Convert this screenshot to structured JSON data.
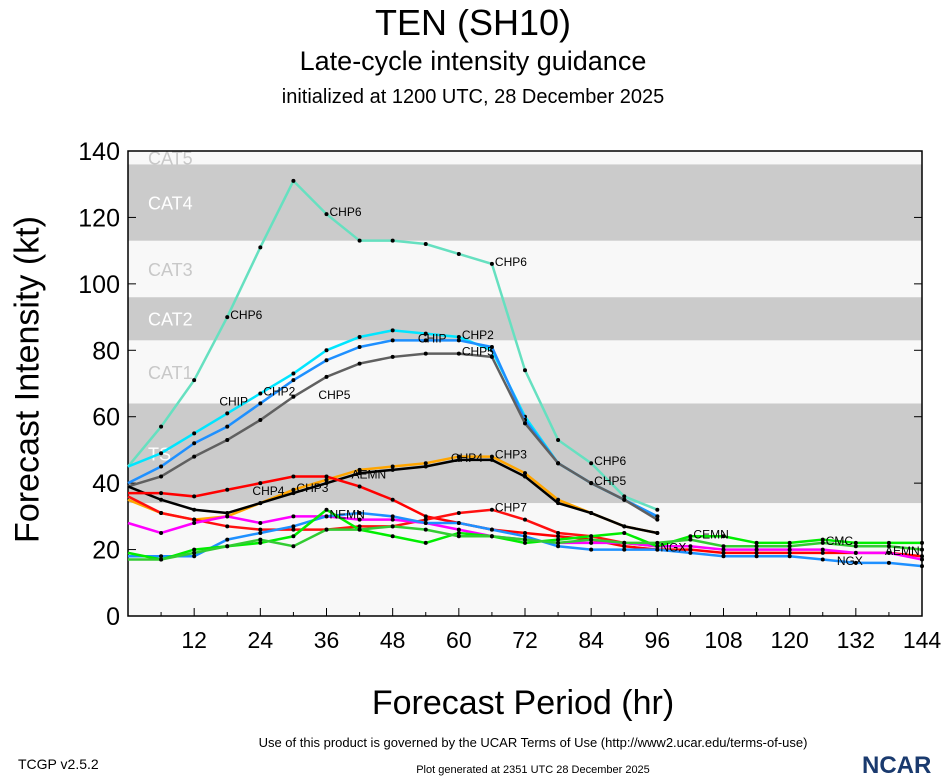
{
  "title": "TEN (SH10)",
  "subtitle": "Late-cycle intensity guidance",
  "init": "initialized at 1200 UTC, 28 December 2025",
  "footer": {
    "terms": "Use of this product is governed by the UCAR Terms of Use (http://www2.ucar.edu/terms-of-use)",
    "generated": "Plot generated at 2351 UTC   28 December 2025",
    "version": "TCGP v2.5.2",
    "logo": "NCAR"
  },
  "chart_data": {
    "type": "line",
    "title": "TEN (SH10)",
    "xlabel": "Forecast Period (hr)",
    "ylabel": "Forecast Intensity (kt)",
    "xlim": [
      0,
      144
    ],
    "ylim": [
      0,
      140
    ],
    "xticks": [
      12,
      24,
      36,
      48,
      60,
      72,
      84,
      96,
      108,
      120,
      132,
      144
    ],
    "yticks": [
      0,
      20,
      40,
      60,
      80,
      100,
      120,
      140
    ],
    "bands": [
      {
        "name": "TS",
        "from": 34,
        "to": 64,
        "color": "#cbcbcb"
      },
      {
        "name": "CAT1",
        "from": 64,
        "to": 83,
        "color": "#f8f8f8"
      },
      {
        "name": "CAT2",
        "from": 83,
        "to": 96,
        "color": "#cbcbcb"
      },
      {
        "name": "CAT3",
        "from": 96,
        "to": 113,
        "color": "#f8f8f8"
      },
      {
        "name": "CAT4",
        "from": 113,
        "to": 136,
        "color": "#cbcbcb"
      },
      {
        "name": "CAT5",
        "from": 136,
        "to": 140,
        "color": "#f8f8f8"
      }
    ],
    "series": [
      {
        "name": "CHP6",
        "color": "#66e0c0",
        "label_hours": [
          18,
          36,
          66,
          84
        ],
        "values": [
          45,
          57,
          71,
          90,
          111,
          131,
          121,
          113,
          113,
          112,
          109,
          106,
          74,
          53,
          46,
          36,
          32
        ]
      },
      {
        "name": "CHP2",
        "color": "#00e5ff",
        "label_hours": [
          24,
          60
        ],
        "values": [
          45,
          49,
          55,
          61,
          67,
          73,
          80,
          84,
          86,
          85,
          84,
          80,
          60,
          46,
          40,
          35,
          30
        ]
      },
      {
        "name": "CHIP",
        "color": "#1e90ff",
        "label_hours": [
          24,
          60
        ],
        "values": [
          40,
          45,
          52,
          57,
          64,
          71,
          77,
          81,
          83,
          83,
          83,
          81,
          59,
          46,
          40,
          35,
          30
        ]
      },
      {
        "name": "CHP5",
        "color": "#606060",
        "label_hours": [
          30,
          60,
          84
        ],
        "values": [
          39,
          42,
          48,
          53,
          59,
          66,
          72,
          76,
          78,
          79,
          79,
          78,
          58,
          46,
          40,
          35,
          29
        ]
      },
      {
        "name": "CHP3",
        "color": "#ffa500",
        "label_hours": [
          30,
          66
        ],
        "values": [
          35,
          31,
          29,
          30,
          34,
          38,
          41,
          44,
          45,
          46,
          48,
          48,
          43,
          35,
          31,
          27,
          25
        ]
      },
      {
        "name": "CHP4",
        "color": "#000000",
        "label_hours": [
          30,
          66
        ],
        "values": [
          39,
          35,
          32,
          31,
          34,
          37,
          40,
          43,
          44,
          45,
          47,
          47,
          42,
          34,
          31,
          27,
          25
        ]
      },
      {
        "name": "AEMN",
        "color": "#ff0000",
        "label_hours": [
          36,
          138
        ],
        "values": [
          37,
          37,
          36,
          38,
          40,
          42,
          42,
          39,
          35,
          30,
          28,
          26,
          25,
          24,
          23,
          21,
          20,
          20,
          19,
          19,
          19,
          19,
          19,
          19,
          18
        ]
      },
      {
        "name": "CHP7",
        "color": "#ff1010",
        "label_hours": [
          66
        ],
        "values": [
          36,
          31,
          29,
          27,
          26,
          26,
          26,
          27,
          27,
          29,
          31,
          32,
          29,
          25,
          24,
          22,
          21
        ]
      },
      {
        "name": "NEMN",
        "color": "#ff00ff",
        "label_hours": [
          36
        ],
        "values": [
          28,
          25,
          28,
          30,
          28,
          30,
          30,
          29,
          29,
          28,
          26,
          24,
          23,
          22,
          22,
          22,
          21,
          21,
          20,
          20,
          20,
          20,
          19,
          19,
          17
        ]
      },
      {
        "name": "NGX",
        "color": "#1e90ff",
        "label_hours": [
          96,
          132
        ],
        "values": [
          18,
          18,
          18,
          23,
          25,
          27,
          30,
          31,
          30,
          28,
          28,
          26,
          24,
          21,
          20,
          20,
          20,
          19,
          18,
          18,
          18,
          17,
          16,
          16,
          15
        ]
      },
      {
        "name": "CEMN",
        "color": "#00ee00",
        "label_hours": [
          102
        ],
        "values": [
          19,
          17,
          20,
          21,
          22,
          24,
          32,
          26,
          24,
          22,
          25,
          24,
          22,
          23,
          24,
          25,
          21,
          24,
          24,
          22,
          22,
          23,
          22,
          22,
          22
        ]
      },
      {
        "name": "CMC",
        "color": "#33cc33",
        "label_hours": [
          126
        ],
        "values": [
          17,
          17,
          19,
          21,
          23,
          21,
          26,
          26,
          27,
          26,
          24,
          24,
          23,
          22,
          23,
          22,
          22,
          23,
          21,
          21,
          21,
          22,
          21,
          21,
          20
        ]
      }
    ]
  }
}
